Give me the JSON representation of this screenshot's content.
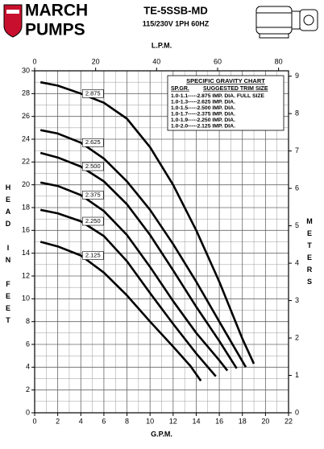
{
  "chart_data": {
    "type": "line",
    "brand": [
      "MARCH",
      "PUMPS"
    ],
    "title": "TE-5SSB-MD",
    "subtitle": "115/230V 1PH 60HZ",
    "x_label": "G.P.M.",
    "x2_label": "L.P.M.",
    "y_label": "HEAD IN FEET",
    "y2_label": "METERS",
    "xlim": [
      0,
      22
    ],
    "xticks": [
      0,
      2,
      4,
      6,
      8,
      10,
      12,
      14,
      16,
      18,
      20,
      22
    ],
    "minor_xticks": [
      1,
      3,
      5,
      7,
      9,
      11,
      13,
      15,
      17,
      19,
      21
    ],
    "ylim": [
      0,
      30
    ],
    "yticks": [
      0,
      2,
      4,
      6,
      8,
      10,
      12,
      14,
      16,
      18,
      20,
      22,
      24,
      26,
      28,
      30
    ],
    "minor_yticks": [
      1,
      3,
      5,
      7,
      9,
      11,
      13,
      15,
      17,
      19,
      21,
      23,
      25,
      27,
      29
    ],
    "x2lim": [
      0,
      83.27
    ],
    "x2ticks": [
      0,
      20,
      40,
      60,
      80
    ],
    "y2lim": [
      0,
      9.144
    ],
    "y2ticks": [
      0,
      1,
      2,
      3,
      4,
      5,
      6,
      7,
      8,
      9
    ],
    "grid": true,
    "series": [
      {
        "name": "2.875",
        "color": "#000000",
        "x": [
          0.5,
          2,
          4,
          6,
          8,
          10,
          12,
          14,
          16,
          18,
          19
        ],
        "values": [
          29,
          28.7,
          28.0,
          27.2,
          25.8,
          23.3,
          20,
          16,
          11.5,
          6.5,
          4.3
        ]
      },
      {
        "name": "2.625",
        "color": "#000000",
        "x": [
          0.5,
          2,
          4,
          6,
          8,
          10,
          12,
          14,
          16,
          18.3
        ],
        "values": [
          24.8,
          24.5,
          23.7,
          22.3,
          20.3,
          17.8,
          14.8,
          11.5,
          8,
          4
        ]
      },
      {
        "name": "2.500",
        "color": "#000000",
        "x": [
          0.5,
          2,
          4,
          6,
          8,
          10,
          12,
          14,
          16,
          17.5
        ],
        "values": [
          22.8,
          22.4,
          21.6,
          20.3,
          18.3,
          15.6,
          12.5,
          9.3,
          6.3,
          3.9
        ]
      },
      {
        "name": "2.375",
        "color": "#000000",
        "x": [
          0.5,
          2,
          4,
          6,
          8,
          10,
          12,
          14,
          16,
          16.7
        ],
        "values": [
          20.2,
          19.9,
          19.1,
          17.7,
          15.6,
          12.8,
          9.8,
          7,
          4.6,
          3.7
        ]
      },
      {
        "name": "2.250",
        "color": "#000000",
        "x": [
          0.5,
          2,
          4,
          6,
          8,
          10,
          12,
          14,
          15.7
        ],
        "values": [
          17.8,
          17.5,
          16.8,
          15.5,
          13.3,
          10.5,
          7.8,
          5.2,
          3.2
        ]
      },
      {
        "name": "2.125",
        "color": "#000000",
        "x": [
          0.5,
          2,
          4,
          6,
          8,
          10,
          12,
          13.5,
          14.4
        ],
        "values": [
          15,
          14.6,
          13.8,
          12.3,
          10.3,
          8,
          5.8,
          4.1,
          2.8
        ]
      }
    ],
    "gravity_chart": {
      "title": "SPECIFIC GRAVITY CHART",
      "columns": [
        "SP.GR.",
        "SUGGESTED TRIM SIZE"
      ],
      "rows": [
        "1.0-1.1-----2.875 IMP. DIA. FULL SIZE",
        "1.0-1.3-----2.625 IMP. DIA.",
        "1.0-1.5-----2.500 IMP. DIA.",
        "1.0-1.7-----2.375 IMP. DIA.",
        "1.0-1.9-----2.250 IMP. DIA.",
        "1.0-2.0-----2.125 IMP. DIA."
      ]
    }
  }
}
